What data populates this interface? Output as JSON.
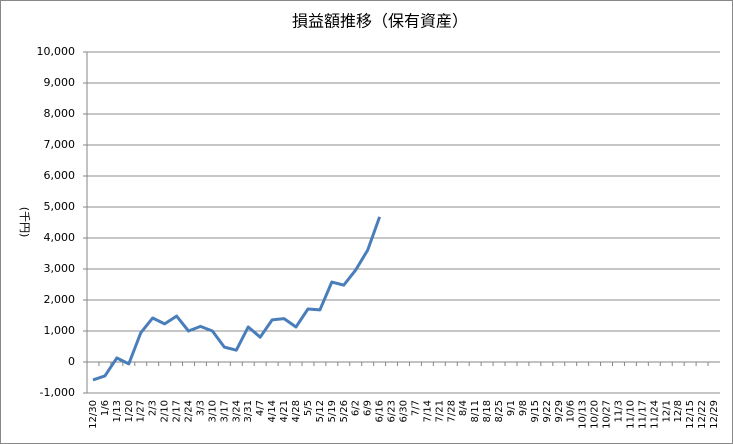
{
  "chart_data": {
    "type": "line",
    "title": "損益額推移（保有資産）",
    "y_label": "(千円)",
    "categories": [
      "12/30",
      "1/6",
      "1/13",
      "1/20",
      "1/27",
      "2/3",
      "2/10",
      "2/17",
      "2/24",
      "3/3",
      "3/10",
      "3/17",
      "3/24",
      "3/31",
      "4/7",
      "4/14",
      "4/21",
      "4/28",
      "5/5",
      "5/12",
      "5/19",
      "5/26",
      "6/2",
      "6/9",
      "6/16",
      "6/23",
      "6/30",
      "7/7",
      "7/14",
      "7/21",
      "7/28",
      "8/4",
      "8/11",
      "8/18",
      "8/25",
      "9/1",
      "9/8",
      "9/15",
      "9/22",
      "9/29",
      "10/6",
      "10/13",
      "10/20",
      "10/27",
      "11/3",
      "11/10",
      "11/17",
      "11/24",
      "12/1",
      "12/8",
      "12/15",
      "12/22",
      "12/29"
    ],
    "series": [
      {
        "color": "#4a7ebb",
        "values": [
          -580,
          -450,
          130,
          -60,
          940,
          1420,
          1230,
          1480,
          1000,
          1150,
          1000,
          480,
          380,
          1130,
          800,
          1360,
          1400,
          1130,
          1710,
          1680,
          2580,
          2480,
          2970,
          3610,
          4680,
          null,
          null,
          null,
          null,
          null,
          null,
          null,
          null,
          null,
          null,
          null,
          null,
          null,
          null,
          null,
          null,
          null,
          null,
          null,
          null,
          null,
          null,
          null,
          null,
          null,
          null,
          null,
          null
        ]
      }
    ],
    "ylim": [
      -1000,
      10000
    ],
    "yticks": [
      {
        "value": -1000,
        "label": "-1,000"
      },
      0,
      {
        "value": 1000,
        "label": "1,000"
      },
      {
        "value": 2000,
        "label": "2,000"
      },
      {
        "value": 3000,
        "label": "3,000"
      },
      {
        "value": 4000,
        "label": "4,000"
      },
      {
        "value": 5000,
        "label": "5,000"
      },
      {
        "value": 6000,
        "label": "6,000"
      },
      {
        "value": 7000,
        "label": "7,000"
      },
      {
        "value": 8000,
        "label": "8,000"
      },
      {
        "value": 9000,
        "label": "9,000"
      },
      {
        "value": 10000,
        "label": "10,000"
      }
    ],
    "grid": true
  }
}
